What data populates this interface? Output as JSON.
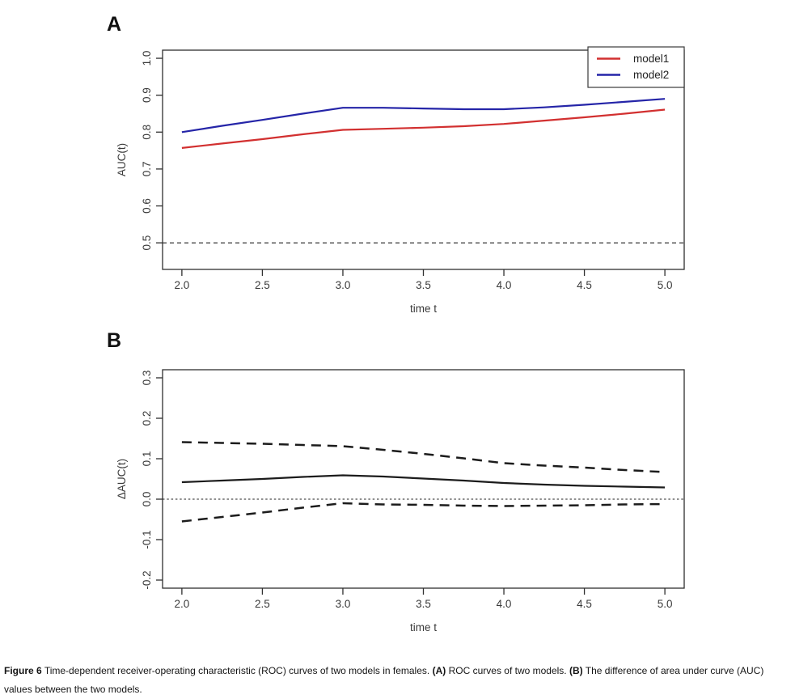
{
  "caption": {
    "figure_label": "Figure 6",
    "text": "Time-dependent receiver-operating characteristic (ROC) curves of two models in females.",
    "a_label": "(A)",
    "a_text": "ROC curves of two models.",
    "b_label": "(B)",
    "b_text": "The difference of area under curve (AUC) values between the two models."
  },
  "colors": {
    "model1": "#d23030",
    "model2": "#2525a8",
    "difference": "#1c1c1c",
    "axis": "#2f2f2f",
    "background": "#ffffff"
  },
  "chart_data": [
    {
      "panel_label": "A",
      "type": "line",
      "xlabel": "time t",
      "ylabel": "AUC(t)",
      "x": [
        2.0,
        2.25,
        2.5,
        2.75,
        3.0,
        3.25,
        3.5,
        3.75,
        4.0,
        4.25,
        4.5,
        4.75,
        5.0
      ],
      "series": [
        {
          "name": "model1",
          "color": "#d23030",
          "style": "solid",
          "values": [
            0.757,
            0.769,
            0.781,
            0.794,
            0.806,
            0.809,
            0.812,
            0.816,
            0.822,
            0.831,
            0.84,
            0.85,
            0.861
          ]
        },
        {
          "name": "model2",
          "color": "#2525a8",
          "style": "solid",
          "values": [
            0.8,
            0.817,
            0.833,
            0.85,
            0.866,
            0.866,
            0.864,
            0.862,
            0.862,
            0.867,
            0.874,
            0.882,
            0.89
          ]
        }
      ],
      "reference_line": {
        "y": 0.5,
        "style": "dashed"
      },
      "xticks": [
        2.0,
        2.5,
        3.0,
        3.5,
        4.0,
        4.5,
        5.0
      ],
      "yticks": [
        0.5,
        0.6,
        0.7,
        0.8,
        0.9,
        1.0
      ],
      "xlim": [
        1.88,
        5.12
      ],
      "ylim": [
        0.428,
        1.022
      ],
      "grid": false,
      "legend": {
        "position": "topright",
        "entries": [
          "model1",
          "model2"
        ]
      }
    },
    {
      "panel_label": "B",
      "type": "line",
      "xlabel": "time t",
      "ylabel": "ΔAUC(t)",
      "x": [
        2.0,
        2.25,
        2.5,
        2.75,
        3.0,
        3.25,
        3.5,
        3.75,
        4.0,
        4.25,
        4.5,
        4.75,
        5.0
      ],
      "series": [
        {
          "name": "difference",
          "color": "#1c1c1c",
          "style": "solid",
          "values": [
            0.042,
            0.046,
            0.05,
            0.055,
            0.059,
            0.056,
            0.051,
            0.046,
            0.04,
            0.036,
            0.033,
            0.031,
            0.029
          ]
        },
        {
          "name": "upper-confidence-bound",
          "color": "#1c1c1c",
          "style": "dashed",
          "values": [
            0.141,
            0.139,
            0.137,
            0.134,
            0.131,
            0.122,
            0.112,
            0.101,
            0.089,
            0.083,
            0.078,
            0.072,
            0.067
          ]
        },
        {
          "name": "lower-confidence-bound",
          "color": "#1c1c1c",
          "style": "dashed",
          "values": [
            -0.055,
            -0.044,
            -0.033,
            -0.021,
            -0.01,
            -0.013,
            -0.014,
            -0.016,
            -0.017,
            -0.016,
            -0.015,
            -0.013,
            -0.012
          ]
        }
      ],
      "reference_line": {
        "y": 0.0,
        "style": "dotted"
      },
      "xticks": [
        2.0,
        2.5,
        3.0,
        3.5,
        4.0,
        4.5,
        5.0
      ],
      "yticks": [
        -0.2,
        -0.1,
        0.0,
        0.1,
        0.2,
        0.3
      ],
      "xlim": [
        1.88,
        5.12
      ],
      "ylim": [
        -0.22,
        0.32
      ],
      "grid": false,
      "legend": null
    }
  ]
}
